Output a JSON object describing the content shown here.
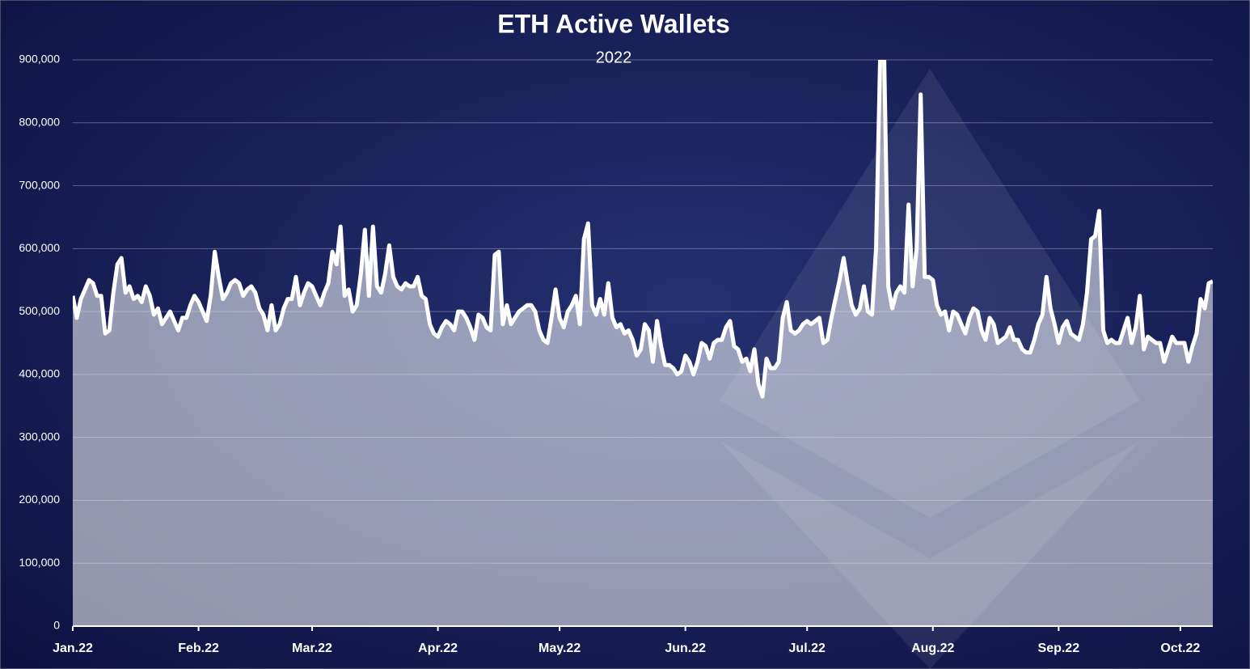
{
  "chart_data": {
    "type": "area-line",
    "title": "ETH Active Wallets",
    "subtitle": "2022",
    "color": "#ffffff",
    "categories": [
      "Jan.22",
      null,
      null,
      null,
      null,
      null,
      null,
      null,
      null,
      null,
      null,
      null,
      null,
      null,
      null,
      null,
      null,
      null,
      null,
      null,
      null,
      null,
      null,
      null,
      null,
      null,
      null,
      null,
      null,
      null,
      null,
      "Feb.22",
      null,
      null,
      null,
      null,
      null,
      null,
      null,
      null,
      null,
      null,
      null,
      null,
      null,
      null,
      null,
      null,
      null,
      null,
      null,
      null,
      null,
      null,
      null,
      null,
      null,
      null,
      null,
      "Mar.22",
      null,
      null,
      null,
      null,
      null,
      null,
      null,
      null,
      null,
      null,
      null,
      null,
      null,
      null,
      null,
      null,
      null,
      null,
      null,
      null,
      null,
      null,
      null,
      null,
      null,
      null,
      null,
      null,
      null,
      null,
      "Apr.22",
      null,
      null,
      null,
      null,
      null,
      null,
      null,
      null,
      null,
      null,
      null,
      null,
      null,
      null,
      null,
      null,
      null,
      null,
      null,
      null,
      null,
      null,
      null,
      null,
      null,
      null,
      null,
      null,
      null,
      "May.22",
      null,
      null,
      null,
      null,
      null,
      null,
      null,
      null,
      null,
      null,
      null,
      null,
      null,
      null,
      null,
      null,
      null,
      null,
      null,
      null,
      null,
      null,
      null,
      null,
      null,
      null,
      null,
      null,
      null,
      null,
      "Jun.22",
      null,
      null,
      null,
      null,
      null,
      null,
      null,
      null,
      null,
      null,
      null,
      null,
      null,
      null,
      null,
      null,
      null,
      null,
      null,
      null,
      null,
      null,
      null,
      null,
      null,
      null,
      null,
      null,
      null,
      "Jul.22",
      null,
      null,
      null,
      null,
      null,
      null,
      null,
      null,
      null,
      null,
      null,
      null,
      null,
      null,
      null,
      null,
      null,
      null,
      null,
      null,
      null,
      null,
      null,
      null,
      null,
      null,
      null,
      null,
      null,
      null,
      "Aug.22",
      null,
      null,
      null,
      null,
      null,
      null,
      null,
      null,
      null,
      null,
      null,
      null,
      null,
      null,
      null,
      null,
      null,
      null,
      null,
      null,
      null,
      null,
      null,
      null,
      null,
      null,
      null,
      null,
      null,
      null,
      "Sep.22",
      null,
      null,
      null,
      null,
      null,
      null,
      null,
      null,
      null,
      null,
      null,
      null,
      null,
      null,
      null,
      null,
      null,
      null,
      null,
      null,
      null,
      null,
      null,
      null,
      null,
      null,
      null,
      null,
      null,
      "Oct.22",
      null,
      null,
      null,
      null,
      null,
      null,
      null,
      null
    ],
    "values": [
      525000,
      490000,
      520000,
      535000,
      550000,
      545000,
      525000,
      525000,
      465000,
      470000,
      530000,
      575000,
      585000,
      530000,
      540000,
      520000,
      525000,
      515000,
      540000,
      525000,
      495000,
      505000,
      480000,
      490000,
      500000,
      485000,
      470000,
      490000,
      490000,
      510000,
      525000,
      515000,
      500000,
      485000,
      525000,
      595000,
      555000,
      520000,
      530000,
      545000,
      550000,
      545000,
      525000,
      535000,
      540000,
      530000,
      505000,
      495000,
      470000,
      510000,
      470000,
      480000,
      505000,
      520000,
      520000,
      555000,
      510000,
      530000,
      545000,
      540000,
      525000,
      510000,
      530000,
      545000,
      595000,
      575000,
      635000,
      525000,
      535000,
      500000,
      510000,
      560000,
      630000,
      525000,
      635000,
      540000,
      530000,
      560000,
      605000,
      555000,
      540000,
      535000,
      545000,
      540000,
      540000,
      555000,
      525000,
      520000,
      480000,
      465000,
      460000,
      475000,
      485000,
      480000,
      470000,
      500000,
      500000,
      490000,
      475000,
      455000,
      495000,
      490000,
      475000,
      470000,
      590000,
      595000,
      480000,
      510000,
      480000,
      490000,
      500000,
      505000,
      510000,
      510000,
      500000,
      470000,
      455000,
      450000,
      490000,
      535000,
      490000,
      475000,
      500000,
      510000,
      525000,
      480000,
      615000,
      640000,
      510000,
      495000,
      520000,
      495000,
      545000,
      490000,
      475000,
      480000,
      465000,
      470000,
      455000,
      430000,
      440000,
      480000,
      470000,
      420000,
      485000,
      445000,
      415000,
      415000,
      410000,
      400000,
      405000,
      430000,
      420000,
      400000,
      420000,
      450000,
      445000,
      425000,
      450000,
      455000,
      455000,
      475000,
      485000,
      445000,
      440000,
      420000,
      425000,
      405000,
      440000,
      385000,
      365000,
      425000,
      410000,
      410000,
      420000,
      490000,
      515000,
      470000,
      465000,
      470000,
      480000,
      485000,
      480000,
      485000,
      490000,
      450000,
      455000,
      490000,
      520000,
      550000,
      585000,
      545000,
      510000,
      495000,
      505000,
      540000,
      500000,
      495000,
      600000,
      900000,
      900000,
      540000,
      505000,
      530000,
      540000,
      530000,
      670000,
      540000,
      600000,
      845000,
      555000,
      555000,
      550000,
      510000,
      495000,
      500000,
      470000,
      500000,
      495000,
      480000,
      465000,
      490000,
      505000,
      500000,
      470000,
      455000,
      490000,
      480000,
      450000,
      455000,
      460000,
      475000,
      455000,
      455000,
      440000,
      435000,
      435000,
      455000,
      480000,
      495000,
      555000,
      505000,
      480000,
      450000,
      475000,
      485000,
      465000,
      460000,
      455000,
      480000,
      530000,
      615000,
      620000,
      660000,
      470000,
      450000,
      455000,
      450000,
      450000,
      470000,
      490000,
      450000,
      475000,
      525000,
      440000,
      460000,
      455000,
      450000,
      450000,
      420000,
      440000,
      460000,
      450000,
      450000,
      450000,
      420000,
      445000,
      465000,
      520000,
      505000,
      545000,
      548000
    ],
    "ylim": [
      0,
      900000
    ],
    "yticks": [
      0,
      {
        "value": 100000,
        "label": "100,000"
      },
      {
        "value": 200000,
        "label": "200,000"
      },
      {
        "value": 300000,
        "label": "300,000"
      },
      {
        "value": 400000,
        "label": "400,000"
      },
      {
        "value": 500000,
        "label": "500,000"
      },
      {
        "value": 600000,
        "label": "600,000"
      },
      {
        "value": 700000,
        "label": "700,000"
      },
      {
        "value": 800000,
        "label": "800,000"
      },
      {
        "value": 900000,
        "label": "900,000"
      }
    ],
    "grid": true
  }
}
